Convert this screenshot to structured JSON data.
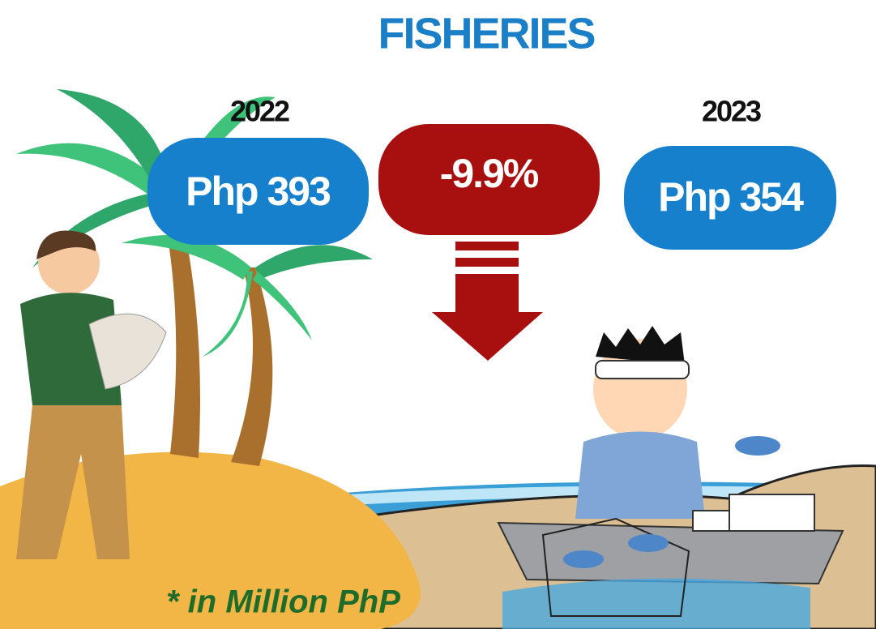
{
  "header": {
    "title": "FISHERIES"
  },
  "comparison": {
    "left": {
      "year": "2022",
      "value": "Php 393"
    },
    "change": {
      "value": "-9.9%"
    },
    "right": {
      "year": "2023",
      "value": "Php 354"
    }
  },
  "note": "* in Million PhP"
}
